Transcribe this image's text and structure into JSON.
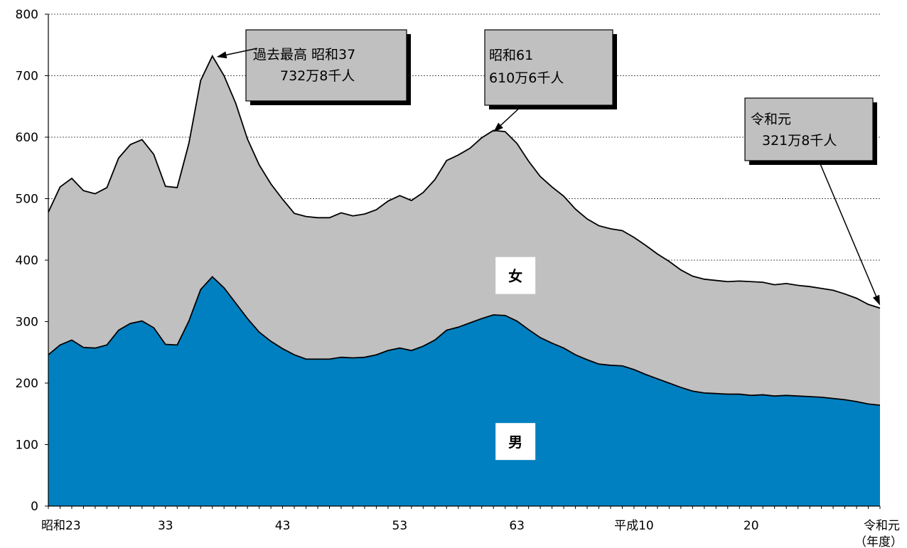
{
  "chart_data": {
    "type": "area",
    "stacked": true,
    "ylim": [
      0,
      800
    ],
    "yticks": [
      0,
      100,
      200,
      300,
      400,
      500,
      600,
      700,
      800
    ],
    "grid": "horizontal-dashed",
    "x_unit_label": "（年度）",
    "x_tick_labels": [
      {
        "x": 0,
        "label": "昭和23"
      },
      {
        "x": 10,
        "label": "33"
      },
      {
        "x": 20,
        "label": "43"
      },
      {
        "x": 30,
        "label": "53"
      },
      {
        "x": 40,
        "label": "63"
      },
      {
        "x": 50,
        "label": "平成10"
      },
      {
        "x": 60,
        "label": "20"
      },
      {
        "x": 71,
        "label": "令和元"
      }
    ],
    "series": [
      {
        "name": "男",
        "color": "#0080C0",
        "values": [
          246,
          262,
          270,
          258,
          257,
          262,
          286,
          297,
          301,
          290,
          263,
          262,
          301,
          352,
          373,
          355,
          330,
          305,
          283,
          268,
          256,
          246,
          239,
          239,
          239,
          242,
          241,
          242,
          246,
          253,
          257,
          253,
          260,
          270,
          286,
          291,
          298,
          305,
          311,
          310,
          301,
          287,
          274,
          265,
          257,
          246,
          238,
          231,
          229,
          228,
          222,
          214,
          207,
          200,
          193,
          187,
          184,
          183,
          182,
          182,
          180,
          181,
          179,
          180,
          179,
          178,
          177,
          175,
          173,
          170,
          166,
          164
        ]
      },
      {
        "name": "女",
        "color": "#C0C0C0",
        "values": [
          232,
          257,
          263,
          255,
          251,
          256,
          280,
          291,
          295,
          282,
          257,
          256,
          289,
          340,
          359,
          345,
          325,
          292,
          272,
          256,
          243,
          230,
          232,
          230,
          230,
          235,
          231,
          233,
          236,
          243,
          248,
          244,
          250,
          261,
          276,
          280,
          284,
          294,
          300,
          299,
          289,
          274,
          262,
          254,
          247,
          237,
          229,
          225,
          222,
          220,
          215,
          210,
          203,
          198,
          191,
          187,
          185,
          184,
          183,
          184,
          185,
          183,
          181,
          182,
          180,
          179,
          177,
          176,
          172,
          168,
          162,
          158
        ]
      }
    ],
    "annotations": [
      {
        "x": 14,
        "value": 732.8,
        "lines": [
          "過去最高  昭和37",
          "732万8千人"
        ]
      },
      {
        "x": 38,
        "value": 610.6,
        "lines": [
          "昭和61",
          "610万6千人"
        ]
      },
      {
        "x": 71,
        "value": 321.8,
        "lines": [
          "令和元",
          "321万8千人"
        ]
      }
    ],
    "series_labels": [
      {
        "series": "女",
        "x": 40,
        "value": 375
      },
      {
        "series": "男",
        "x": 40,
        "value": 105
      }
    ]
  }
}
